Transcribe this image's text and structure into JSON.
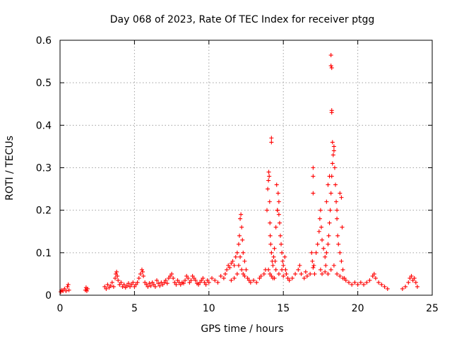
{
  "chart_data": {
    "type": "scatter",
    "title": "Day 068 of 2023, Rate Of TEC Index for receiver ptgg",
    "xlabel": "GPS time / hours",
    "ylabel": "ROTI / TECUs",
    "xlim": [
      0,
      25
    ],
    "ylim": [
      0,
      0.6
    ],
    "xticks": [
      0,
      5,
      10,
      15,
      20,
      25
    ],
    "xtick_labels": [
      "0",
      "5",
      "10",
      "15",
      "20",
      "25"
    ],
    "yticks": [
      0,
      0.1,
      0.2,
      0.3,
      0.4,
      0.5,
      0.6
    ],
    "ytick_labels": [
      "0",
      "0.1",
      "0.2",
      "0.3",
      "0.4",
      "0.5",
      "0.6"
    ],
    "grid": true,
    "marker": "plus",
    "color": "#ff0000",
    "series": [
      {
        "points": [
          [
            0.05,
            0.008
          ],
          [
            0.1,
            0.012
          ],
          [
            0.2,
            0.01
          ],
          [
            0.3,
            0.015
          ],
          [
            0.4,
            0.01
          ],
          [
            0.5,
            0.02
          ],
          [
            0.55,
            0.025
          ],
          [
            0.6,
            0.012
          ],
          [
            1.7,
            0.012
          ],
          [
            1.75,
            0.018
          ],
          [
            1.8,
            0.01
          ],
          [
            1.85,
            0.015
          ],
          [
            3.0,
            0.02
          ],
          [
            3.1,
            0.015
          ],
          [
            3.2,
            0.025
          ],
          [
            3.3,
            0.018
          ],
          [
            3.4,
            0.022
          ],
          [
            3.5,
            0.03
          ],
          [
            3.6,
            0.02
          ],
          [
            3.7,
            0.04
          ],
          [
            3.75,
            0.05
          ],
          [
            3.8,
            0.055
          ],
          [
            3.85,
            0.045
          ],
          [
            3.9,
            0.035
          ],
          [
            4.0,
            0.025
          ],
          [
            4.1,
            0.03
          ],
          [
            4.2,
            0.02
          ],
          [
            4.3,
            0.025
          ],
          [
            4.4,
            0.018
          ],
          [
            4.5,
            0.022
          ],
          [
            4.6,
            0.028
          ],
          [
            4.7,
            0.02
          ],
          [
            4.8,
            0.025
          ],
          [
            4.9,
            0.03
          ],
          [
            5.0,
            0.02
          ],
          [
            5.1,
            0.025
          ],
          [
            5.2,
            0.03
          ],
          [
            5.3,
            0.04
          ],
          [
            5.4,
            0.05
          ],
          [
            5.5,
            0.06
          ],
          [
            5.55,
            0.055
          ],
          [
            5.6,
            0.045
          ],
          [
            5.7,
            0.03
          ],
          [
            5.8,
            0.025
          ],
          [
            5.9,
            0.02
          ],
          [
            6.0,
            0.028
          ],
          [
            6.1,
            0.022
          ],
          [
            6.2,
            0.03
          ],
          [
            6.3,
            0.025
          ],
          [
            6.4,
            0.02
          ],
          [
            6.5,
            0.035
          ],
          [
            6.6,
            0.028
          ],
          [
            6.7,
            0.022
          ],
          [
            6.8,
            0.03
          ],
          [
            6.9,
            0.025
          ],
          [
            7.0,
            0.03
          ],
          [
            7.1,
            0.035
          ],
          [
            7.2,
            0.028
          ],
          [
            7.3,
            0.04
          ],
          [
            7.4,
            0.045
          ],
          [
            7.5,
            0.05
          ],
          [
            7.6,
            0.04
          ],
          [
            7.7,
            0.03
          ],
          [
            7.8,
            0.025
          ],
          [
            7.9,
            0.035
          ],
          [
            8.0,
            0.03
          ],
          [
            8.1,
            0.025
          ],
          [
            8.2,
            0.03
          ],
          [
            8.3,
            0.028
          ],
          [
            8.4,
            0.035
          ],
          [
            8.5,
            0.045
          ],
          [
            8.6,
            0.04
          ],
          [
            8.7,
            0.03
          ],
          [
            8.8,
            0.035
          ],
          [
            8.9,
            0.045
          ],
          [
            9.0,
            0.04
          ],
          [
            9.1,
            0.035
          ],
          [
            9.2,
            0.028
          ],
          [
            9.3,
            0.025
          ],
          [
            9.4,
            0.03
          ],
          [
            9.5,
            0.035
          ],
          [
            9.6,
            0.04
          ],
          [
            9.7,
            0.03
          ],
          [
            9.8,
            0.025
          ],
          [
            9.9,
            0.035
          ],
          [
            10.0,
            0.03
          ],
          [
            10.2,
            0.04
          ],
          [
            10.4,
            0.035
          ],
          [
            10.6,
            0.03
          ],
          [
            10.8,
            0.045
          ],
          [
            11.0,
            0.04
          ],
          [
            11.1,
            0.05
          ],
          [
            11.2,
            0.06
          ],
          [
            11.3,
            0.07
          ],
          [
            11.4,
            0.065
          ],
          [
            11.5,
            0.075
          ],
          [
            11.6,
            0.08
          ],
          [
            11.7,
            0.07
          ],
          [
            11.8,
            0.09
          ],
          [
            11.9,
            0.1
          ],
          [
            12.0,
            0.12
          ],
          [
            12.05,
            0.14
          ],
          [
            12.1,
            0.18
          ],
          [
            12.15,
            0.19
          ],
          [
            12.2,
            0.16
          ],
          [
            12.25,
            0.13
          ],
          [
            12.3,
            0.1
          ],
          [
            12.4,
            0.08
          ],
          [
            12.5,
            0.06
          ],
          [
            12.6,
            0.04
          ],
          [
            12.7,
            0.035
          ],
          [
            11.9,
            0.05
          ],
          [
            12.0,
            0.07
          ],
          [
            12.1,
            0.09
          ],
          [
            12.2,
            0.06
          ],
          [
            12.3,
            0.05
          ],
          [
            11.7,
            0.04
          ],
          [
            11.5,
            0.035
          ],
          [
            12.4,
            0.045
          ],
          [
            12.8,
            0.03
          ],
          [
            13.0,
            0.035
          ],
          [
            13.2,
            0.03
          ],
          [
            13.4,
            0.04
          ],
          [
            13.5,
            0.045
          ],
          [
            13.7,
            0.05
          ],
          [
            13.8,
            0.06
          ],
          [
            13.9,
            0.2
          ],
          [
            13.95,
            0.25
          ],
          [
            14.0,
            0.27
          ],
          [
            14.02,
            0.29
          ],
          [
            14.05,
            0.28
          ],
          [
            14.08,
            0.22
          ],
          [
            14.1,
            0.17
          ],
          [
            14.12,
            0.14
          ],
          [
            14.15,
            0.12
          ],
          [
            14.2,
            0.1
          ],
          [
            14.25,
            0.08
          ],
          [
            14.3,
            0.07
          ],
          [
            14.35,
            0.09
          ],
          [
            14.4,
            0.11
          ],
          [
            14.45,
            0.08
          ],
          [
            14.5,
            0.06
          ],
          [
            14.0,
            0.06
          ],
          [
            14.1,
            0.05
          ],
          [
            14.2,
            0.045
          ],
          [
            14.3,
            0.04
          ],
          [
            14.5,
            0.16
          ],
          [
            14.55,
            0.26
          ],
          [
            14.6,
            0.2
          ],
          [
            14.65,
            0.24
          ],
          [
            14.7,
            0.22
          ],
          [
            14.75,
            0.17
          ],
          [
            14.8,
            0.14
          ],
          [
            14.85,
            0.12
          ],
          [
            14.9,
            0.1
          ],
          [
            14.95,
            0.08
          ],
          [
            15.0,
            0.07
          ],
          [
            15.1,
            0.09
          ],
          [
            15.15,
            0.06
          ],
          [
            15.2,
            0.05
          ],
          [
            15.3,
            0.04
          ],
          [
            14.2,
            0.37
          ],
          [
            14.2,
            0.36
          ],
          [
            14.6,
            0.2
          ],
          [
            14.7,
            0.19
          ],
          [
            14.4,
            0.04
          ],
          [
            14.7,
            0.05
          ],
          [
            14.9,
            0.06
          ],
          [
            15.0,
            0.045
          ],
          [
            15.4,
            0.035
          ],
          [
            15.6,
            0.04
          ],
          [
            15.8,
            0.05
          ],
          [
            16.0,
            0.06
          ],
          [
            16.1,
            0.07
          ],
          [
            16.2,
            0.05
          ],
          [
            16.4,
            0.04
          ],
          [
            16.5,
            0.055
          ],
          [
            16.6,
            0.045
          ],
          [
            16.8,
            0.05
          ],
          [
            16.9,
            0.1
          ],
          [
            16.95,
            0.08
          ],
          [
            17.0,
            0.065
          ],
          [
            17.05,
            0.07
          ],
          [
            17.1,
            0.05
          ],
          [
            17.2,
            0.1
          ],
          [
            17.3,
            0.12
          ],
          [
            17.4,
            0.15
          ],
          [
            17.45,
            0.18
          ],
          [
            17.5,
            0.2
          ],
          [
            17.55,
            0.16
          ],
          [
            17.6,
            0.13
          ],
          [
            17.7,
            0.11
          ],
          [
            17.8,
            0.09
          ],
          [
            17.85,
            0.07
          ],
          [
            17.9,
            0.1
          ],
          [
            18.0,
            0.12
          ],
          [
            18.05,
            0.14
          ],
          [
            18.1,
            0.17
          ],
          [
            18.15,
            0.2
          ],
          [
            18.2,
            0.24
          ],
          [
            18.25,
            0.28
          ],
          [
            18.3,
            0.31
          ],
          [
            18.35,
            0.33
          ],
          [
            18.4,
            0.35
          ],
          [
            18.45,
            0.3
          ],
          [
            18.5,
            0.26
          ],
          [
            18.55,
            0.22
          ],
          [
            18.6,
            0.18
          ],
          [
            18.65,
            0.14
          ],
          [
            18.7,
            0.12
          ],
          [
            18.8,
            0.1
          ],
          [
            18.9,
            0.08
          ],
          [
            19.0,
            0.06
          ],
          [
            17.0,
            0.28
          ],
          [
            17.0,
            0.3
          ],
          [
            17.0,
            0.24
          ],
          [
            18.2,
            0.565
          ],
          [
            18.2,
            0.54
          ],
          [
            18.25,
            0.535
          ],
          [
            18.25,
            0.435
          ],
          [
            18.25,
            0.43
          ],
          [
            18.3,
            0.36
          ],
          [
            18.4,
            0.34
          ],
          [
            18.1,
            0.28
          ],
          [
            18.0,
            0.26
          ],
          [
            17.9,
            0.22
          ],
          [
            18.6,
            0.2
          ],
          [
            18.8,
            0.24
          ],
          [
            18.9,
            0.23
          ],
          [
            18.95,
            0.16
          ],
          [
            17.5,
            0.06
          ],
          [
            17.6,
            0.05
          ],
          [
            17.8,
            0.055
          ],
          [
            18.0,
            0.05
          ],
          [
            18.2,
            0.06
          ],
          [
            18.4,
            0.07
          ],
          [
            18.6,
            0.05
          ],
          [
            18.8,
            0.045
          ],
          [
            19.0,
            0.04
          ],
          [
            19.1,
            0.04
          ],
          [
            19.2,
            0.035
          ],
          [
            19.4,
            0.03
          ],
          [
            19.6,
            0.025
          ],
          [
            19.8,
            0.03
          ],
          [
            20.0,
            0.025
          ],
          [
            20.2,
            0.03
          ],
          [
            20.4,
            0.025
          ],
          [
            20.6,
            0.03
          ],
          [
            20.8,
            0.035
          ],
          [
            21.0,
            0.045
          ],
          [
            21.1,
            0.05
          ],
          [
            21.2,
            0.04
          ],
          [
            21.4,
            0.03
          ],
          [
            21.6,
            0.025
          ],
          [
            21.8,
            0.02
          ],
          [
            22.0,
            0.015
          ],
          [
            23.0,
            0.015
          ],
          [
            23.2,
            0.02
          ],
          [
            23.4,
            0.03
          ],
          [
            23.5,
            0.04
          ],
          [
            23.6,
            0.045
          ],
          [
            23.7,
            0.035
          ],
          [
            23.8,
            0.04
          ],
          [
            23.9,
            0.03
          ],
          [
            24.0,
            0.02
          ]
        ]
      }
    ]
  }
}
